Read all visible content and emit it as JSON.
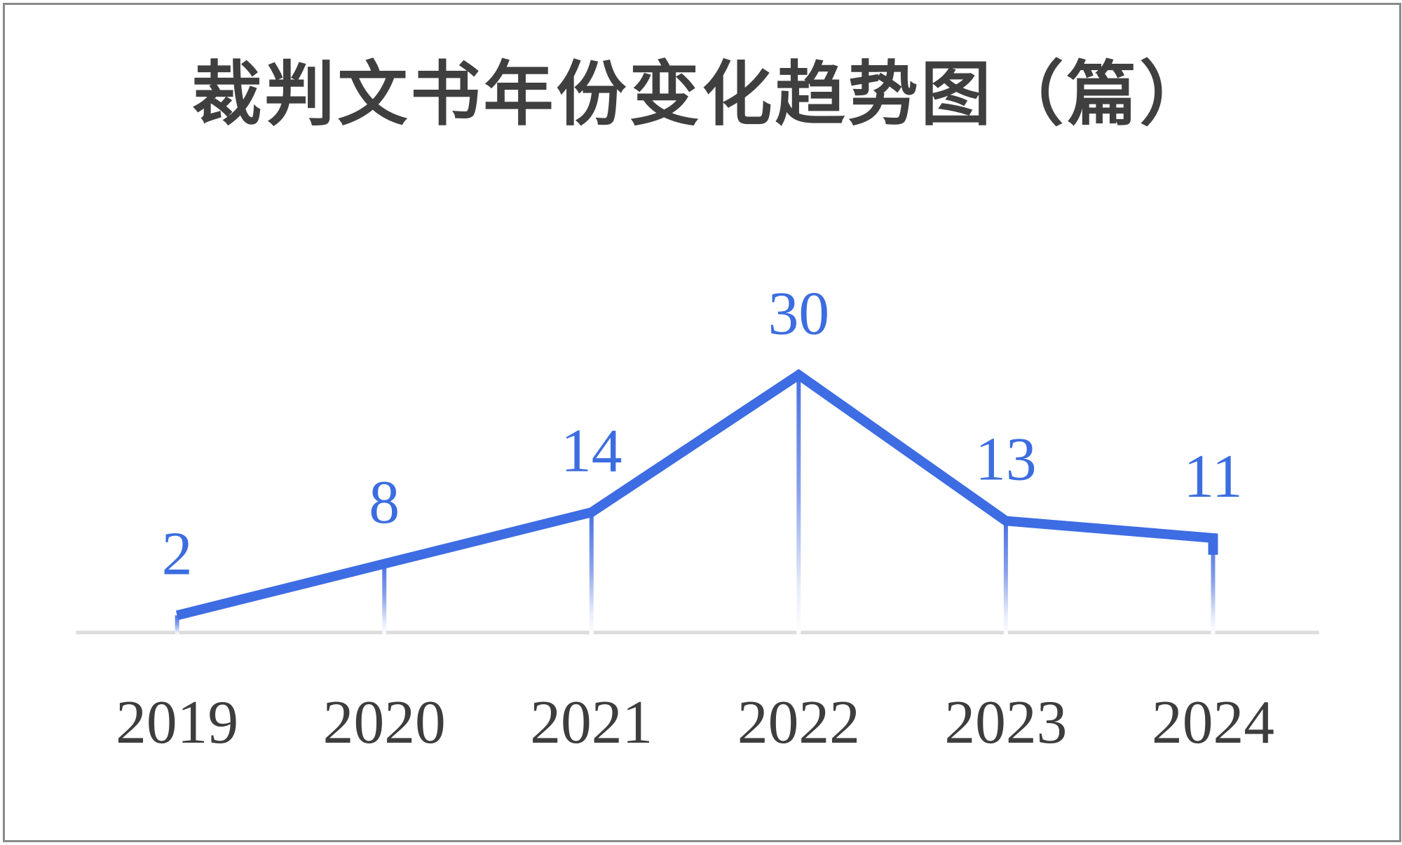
{
  "chart_data": {
    "type": "line",
    "title": "裁判文书年份变化趋势图（篇）",
    "categories": [
      "2019",
      "2020",
      "2021",
      "2022",
      "2023",
      "2024"
    ],
    "values": [
      2,
      8,
      14,
      30,
      13,
      11
    ],
    "data_labels_shown": true,
    "xlabel": "",
    "ylabel": "",
    "ylim": [
      0,
      30
    ],
    "grid": false,
    "legend": "none",
    "colors": {
      "line": "#3d6ce3",
      "value_label": "#3c6de0",
      "year_label": "#3d3d3d",
      "title": "#3f3f3f",
      "baseline": "#dcdcdc",
      "frame_border": "#8a8a8a",
      "background": "#ffffff"
    }
  }
}
